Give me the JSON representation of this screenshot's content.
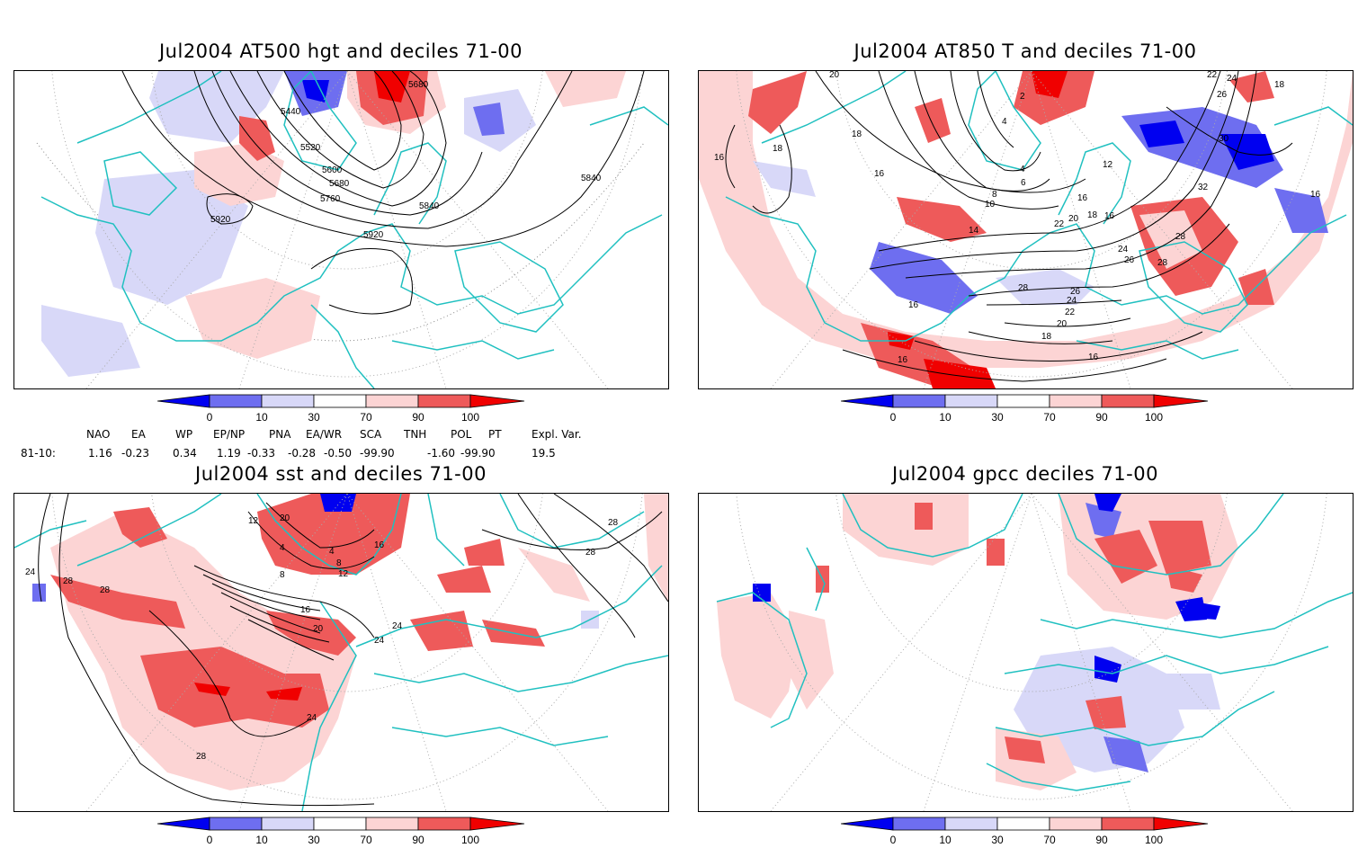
{
  "panels": [
    {
      "title": "Jul2004 AT500 hgt and deciles 71-00",
      "contour_labels": [
        "5440",
        "5520",
        "5600",
        "5680",
        "5760",
        "5840",
        "5920",
        "5920",
        "5840",
        "5680"
      ]
    },
    {
      "title": "Jul2004 AT850 T and deciles 71-00",
      "contour_labels": [
        "20",
        "18",
        "16",
        "18",
        "16",
        "14",
        "12",
        "10",
        "8",
        "6",
        "4",
        "2",
        "4",
        "16",
        "16",
        "18",
        "20",
        "22",
        "24",
        "26",
        "28",
        "28",
        "28",
        "26",
        "24",
        "22",
        "20",
        "18",
        "16",
        "16",
        "16",
        "30",
        "32",
        "22",
        "24",
        "26",
        "18",
        "16"
      ]
    },
    {
      "title": "Jul2004 sst and deciles 71-00",
      "contour_labels": [
        "24",
        "28",
        "28",
        "20",
        "16",
        "12",
        "8",
        "4",
        "4",
        "8",
        "12",
        "16",
        "20",
        "24",
        "24",
        "28",
        "28",
        "24",
        "28"
      ]
    },
    {
      "title": "Jul2004 gpcc deciles 71-00",
      "contour_labels": []
    }
  ],
  "colorbar": {
    "ticks": [
      "0",
      "10",
      "30",
      "70",
      "90",
      "100"
    ],
    "colors": {
      "strong_blue": "#0000f0",
      "mid_blue": "#6e6ef0",
      "light_blue": "#d8d8f8",
      "white": "#ffffff",
      "light_red": "#fcd4d4",
      "mid_red": "#ee5a5a",
      "strong_red": "#f00000"
    }
  },
  "indices": {
    "headers": [
      "NAO",
      "EA",
      "WP",
      "EP/NP",
      "PNA",
      "EA/WR",
      "SCA",
      "TNH",
      "POL",
      "PT",
      "Expl. Var."
    ],
    "row_label": "81-10:",
    "values": [
      "1.16",
      "-0.23",
      "0.34",
      "1.19",
      "-0.33",
      "-0.28",
      "-0.50",
      "-99.90",
      "-1.60",
      "-99.90",
      "19.5"
    ]
  }
}
